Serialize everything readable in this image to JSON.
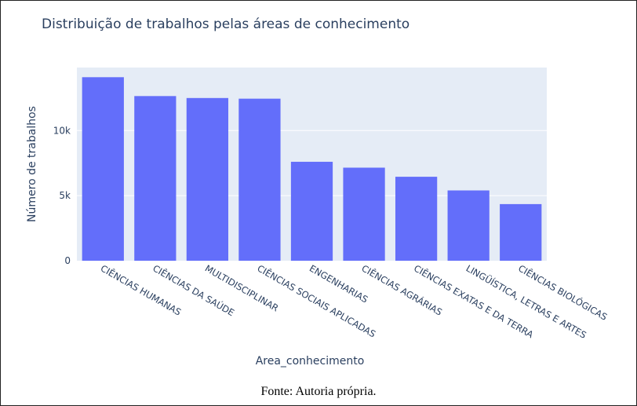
{
  "caption": "Fonte: Autoria própria.",
  "chart_data": {
    "type": "bar",
    "title": "Distribuição de trabalhos pelas áreas de conhecimento",
    "xlabel": "Area_conhecimento",
    "ylabel": "Número de trabalhos",
    "categories": [
      "CIÊNCIAS HUMANAS",
      "CIÊNCIAS DA SAÚDE",
      "MULTIDISCIPLINAR",
      "CIÊNCIAS SOCIAIS APLICADAS",
      "ENGENHARIAS",
      "CIÊNCIAS AGRÁRIAS",
      "CIÊNCIAS EXATAS E DA TERRA",
      "LINGÜÍSTICA, LETRAS E ARTES",
      "CIÊNCIAS BIOLÓGICAS"
    ],
    "values": [
      14100,
      12650,
      12500,
      12450,
      7600,
      7150,
      6450,
      5400,
      4350
    ],
    "yticks": [
      0,
      5000,
      10000
    ],
    "yticklabels": [
      "0",
      "5k",
      "10k"
    ],
    "ylim": [
      0,
      14842
    ],
    "grid": true,
    "colors": {
      "bar": "#636efa",
      "plot_bg": "#e5ecf6",
      "grid": "#ffffff",
      "text": "#2a3f5f"
    }
  }
}
